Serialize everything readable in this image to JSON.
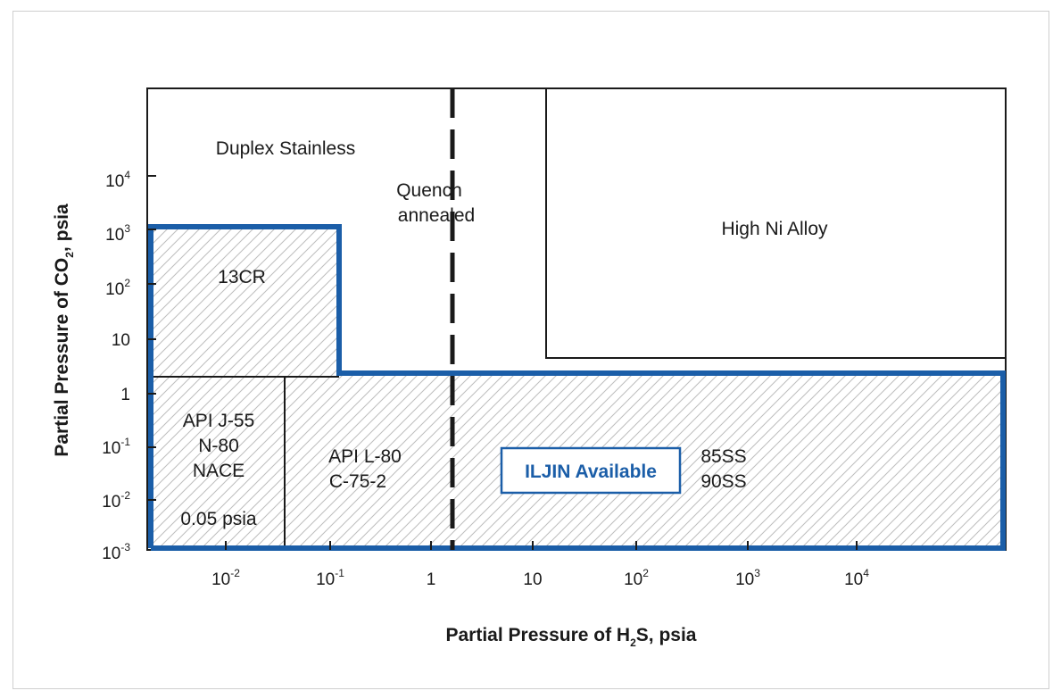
{
  "colors": {
    "accent": "#1b5ea8",
    "ink": "#1a1a1a",
    "hatch": "#bdbdbd"
  },
  "axes": {
    "x_title": {
      "main": "Partial Pressure of H",
      "sub": "2",
      "rest": "S, psia"
    },
    "y_title": {
      "main": "Partial Pressure of CO",
      "sub": "2",
      "rest": ", psia"
    },
    "x_ticks": [
      {
        "base": "10",
        "exp": "-2"
      },
      {
        "base": "10",
        "exp": "-1"
      },
      {
        "base": "1",
        "exp": ""
      },
      {
        "base": "10",
        "exp": ""
      },
      {
        "base": "10",
        "exp": "2"
      },
      {
        "base": "10",
        "exp": "3"
      },
      {
        "base": "10",
        "exp": "4"
      }
    ],
    "y_ticks": [
      {
        "base": "10",
        "exp": "4"
      },
      {
        "base": "10",
        "exp": "3"
      },
      {
        "base": "10",
        "exp": "2"
      },
      {
        "base": "10",
        "exp": ""
      },
      {
        "base": "1",
        "exp": ""
      },
      {
        "base": "10",
        "exp": "-1"
      },
      {
        "base": "10",
        "exp": "-2"
      },
      {
        "base": "10",
        "exp": "-3"
      }
    ]
  },
  "regions": {
    "duplex": "Duplex Stainless",
    "quench_line1": "Quench",
    "quench_line2": "annealed",
    "high_ni": "High Ni Alloy",
    "cr13": "13CR",
    "api_j55_line1": "API J-55",
    "api_j55_line2": "N-80",
    "api_j55_line3": "NACE",
    "api_j55_line4": "0.05 psia",
    "api_l80_line1": "API L-80",
    "api_l80_line2": "C-75-2",
    "ss_line1": "85SS",
    "ss_line2": "90SS"
  },
  "callout": {
    "label": "ILJIN Available"
  }
}
